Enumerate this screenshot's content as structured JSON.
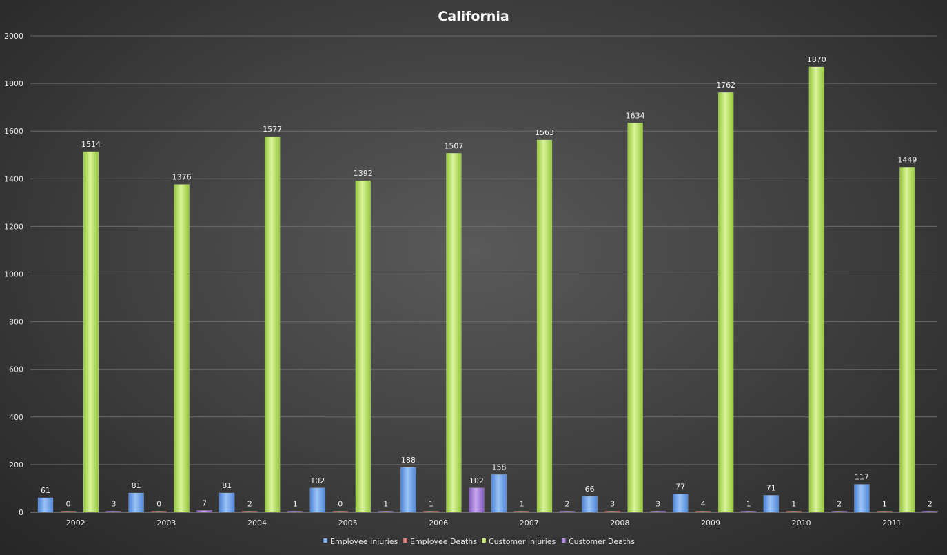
{
  "chart_data": {
    "type": "bar",
    "title": "California",
    "xlabel": "",
    "ylabel": "",
    "ylim": [
      0,
      2000
    ],
    "yticks": [
      0,
      200,
      400,
      600,
      800,
      1000,
      1200,
      1400,
      1600,
      1800,
      2000
    ],
    "grid": true,
    "legend_position": "bottom",
    "categories": [
      "2002",
      "2003",
      "2004",
      "2005",
      "2006",
      "2007",
      "2008",
      "2009",
      "2010",
      "2011"
    ],
    "series": [
      {
        "name": "Employee Injuries",
        "color": "#6fa3e8",
        "values": [
          61,
          81,
          81,
          102,
          188,
          158,
          66,
          77,
          71,
          117
        ]
      },
      {
        "name": "Employee Deaths",
        "color": "#e46c6a",
        "values": [
          0,
          0,
          2,
          0,
          1,
          1,
          3,
          4,
          1,
          1
        ]
      },
      {
        "name": "Customer Injuries",
        "color": "#b5e05a",
        "values": [
          1514,
          1376,
          1577,
          1392,
          1507,
          1563,
          1634,
          1762,
          1870,
          1449
        ]
      },
      {
        "name": "Customer Deaths",
        "color": "#a27bd4",
        "values": [
          3,
          7,
          1,
          1,
          102,
          2,
          3,
          1,
          2,
          2
        ]
      }
    ]
  }
}
